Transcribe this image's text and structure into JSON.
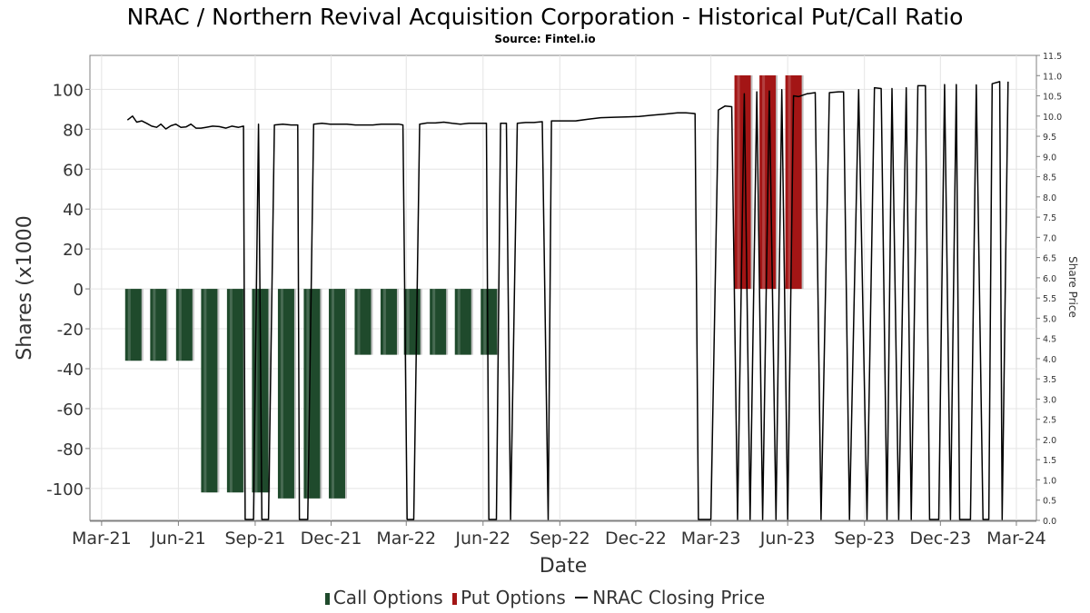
{
  "chart_data": {
    "type": "bar",
    "title": "NRAC / Northern Revival Acquisition Corporation - Historical Put/Call Ratio",
    "subtitle": "Source: Fintel.io",
    "xlabel": "Date",
    "ylabel": "Shares (x1000",
    "y2label": "Share Price",
    "x_tick_labels": [
      "Mar-21",
      "Jun-21",
      "Sep-21",
      "Dec-21",
      "Mar-22",
      "Jun-22",
      "Sep-22",
      "Dec-22",
      "Mar-23",
      "Jun-23",
      "Sep-23",
      "Dec-23",
      "Mar-24"
    ],
    "x_tick_dates": [
      "2021-03-01",
      "2021-06-01",
      "2021-09-01",
      "2021-12-01",
      "2022-03-01",
      "2022-06-01",
      "2022-09-01",
      "2022-12-01",
      "2023-03-01",
      "2023-06-01",
      "2023-09-01",
      "2023-12-01",
      "2024-03-01"
    ],
    "x_range": [
      "2021-02-15",
      "2024-03-25"
    ],
    "ylim": [
      -116,
      117
    ],
    "y_ticks": [
      100,
      80,
      60,
      40,
      20,
      0,
      -20,
      -40,
      -60,
      -80,
      -100
    ],
    "y2lim": [
      0,
      11.5
    ],
    "y2_ticks": [
      "0.0",
      "0.5",
      "1.0",
      "1.5",
      "2.0",
      "2.5",
      "3.0",
      "3.5",
      "4.0",
      "4.5",
      "5.0",
      "5.5",
      "6.0",
      "6.5",
      "7.0",
      "7.5",
      "8.0",
      "8.5",
      "9.0",
      "9.5",
      "10.0",
      "10.5",
      "11.0",
      "11.5"
    ],
    "grid": true,
    "legend_position": "bottom",
    "series": [
      {
        "name": "Call Options",
        "color": "#1f4a2c",
        "points": [
          {
            "date": "2021-04-08",
            "value": -36
          },
          {
            "date": "2021-05-08",
            "value": -36
          },
          {
            "date": "2021-06-08",
            "value": -36
          },
          {
            "date": "2021-07-08",
            "value": -102
          },
          {
            "date": "2021-08-08",
            "value": -102
          },
          {
            "date": "2021-09-07",
            "value": -102
          },
          {
            "date": "2021-10-08",
            "value": -105
          },
          {
            "date": "2021-11-08",
            "value": -105
          },
          {
            "date": "2021-12-08",
            "value": -105
          },
          {
            "date": "2022-01-08",
            "value": -33
          },
          {
            "date": "2022-02-08",
            "value": -33
          },
          {
            "date": "2022-03-08",
            "value": -33
          },
          {
            "date": "2022-04-08",
            "value": -33
          },
          {
            "date": "2022-05-08",
            "value": -33
          },
          {
            "date": "2022-06-08",
            "value": -33
          }
        ]
      },
      {
        "name": "Put Options",
        "color": "#a31515",
        "points": [
          {
            "date": "2023-04-08",
            "value": 107
          },
          {
            "date": "2023-05-08",
            "value": 107
          },
          {
            "date": "2023-06-08",
            "value": 107
          }
        ]
      },
      {
        "name": "NRAC Closing Price",
        "color": "#000000",
        "axis": "right",
        "points": [
          [
            "2021-04-01",
            9.9
          ],
          [
            "2021-04-07",
            10.0
          ],
          [
            "2021-04-12",
            9.85
          ],
          [
            "2021-04-18",
            9.88
          ],
          [
            "2021-04-24",
            9.82
          ],
          [
            "2021-04-30",
            9.75
          ],
          [
            "2021-05-06",
            9.72
          ],
          [
            "2021-05-11",
            9.8
          ],
          [
            "2021-05-17",
            9.68
          ],
          [
            "2021-05-23",
            9.76
          ],
          [
            "2021-05-29",
            9.8
          ],
          [
            "2021-06-04",
            9.72
          ],
          [
            "2021-06-10",
            9.73
          ],
          [
            "2021-06-16",
            9.8
          ],
          [
            "2021-06-22",
            9.7
          ],
          [
            "2021-06-28",
            9.7
          ],
          [
            "2021-07-04",
            9.72
          ],
          [
            "2021-07-12",
            9.75
          ],
          [
            "2021-07-20",
            9.74
          ],
          [
            "2021-07-28",
            9.7
          ],
          [
            "2021-08-04",
            9.75
          ],
          [
            "2021-08-12",
            9.72
          ],
          [
            "2021-08-18",
            9.75
          ],
          [
            "2021-08-20",
            0
          ],
          [
            "2021-08-30",
            0
          ],
          [
            "2021-09-05",
            9.8
          ],
          [
            "2021-09-09",
            0
          ],
          [
            "2021-09-17",
            0
          ],
          [
            "2021-09-24",
            9.78
          ],
          [
            "2021-10-04",
            9.8
          ],
          [
            "2021-10-14",
            9.78
          ],
          [
            "2021-10-22",
            9.78
          ],
          [
            "2021-10-24",
            0
          ],
          [
            "2021-11-03",
            0
          ],
          [
            "2021-11-10",
            9.8
          ],
          [
            "2021-11-20",
            9.82
          ],
          [
            "2021-11-30",
            9.8
          ],
          [
            "2021-12-10",
            9.8
          ],
          [
            "2021-12-20",
            9.8
          ],
          [
            "2021-12-30",
            9.78
          ],
          [
            "2022-01-10",
            9.78
          ],
          [
            "2022-01-20",
            9.78
          ],
          [
            "2022-01-30",
            9.8
          ],
          [
            "2022-02-10",
            9.8
          ],
          [
            "2022-02-20",
            9.8
          ],
          [
            "2022-02-25",
            9.78
          ],
          [
            "2022-03-02",
            0
          ],
          [
            "2022-03-10",
            0
          ],
          [
            "2022-03-17",
            9.8
          ],
          [
            "2022-03-26",
            9.83
          ],
          [
            "2022-04-05",
            9.83
          ],
          [
            "2022-04-15",
            9.85
          ],
          [
            "2022-04-25",
            9.82
          ],
          [
            "2022-05-05",
            9.8
          ],
          [
            "2022-05-15",
            9.82
          ],
          [
            "2022-05-25",
            9.82
          ],
          [
            "2022-06-05",
            9.82
          ],
          [
            "2022-06-08",
            0
          ],
          [
            "2022-06-17",
            0
          ],
          [
            "2022-06-22",
            9.82
          ],
          [
            "2022-06-29",
            9.82
          ],
          [
            "2022-07-04",
            0
          ],
          [
            "2022-07-12",
            9.82
          ],
          [
            "2022-07-22",
            9.84
          ],
          [
            "2022-08-01",
            9.84
          ],
          [
            "2022-08-11",
            9.86
          ],
          [
            "2022-08-18",
            0
          ],
          [
            "2022-08-22",
            9.88
          ],
          [
            "2022-09-05",
            9.88
          ],
          [
            "2022-09-20",
            9.88
          ],
          [
            "2022-10-05",
            9.92
          ],
          [
            "2022-10-20",
            9.96
          ],
          [
            "2022-11-05",
            9.97
          ],
          [
            "2022-11-20",
            9.98
          ],
          [
            "2022-12-05",
            9.99
          ],
          [
            "2022-12-20",
            10.02
          ],
          [
            "2023-01-05",
            10.05
          ],
          [
            "2023-01-20",
            10.08
          ],
          [
            "2023-01-30",
            10.08
          ],
          [
            "2023-02-10",
            10.06
          ],
          [
            "2023-02-14",
            0
          ],
          [
            "2023-03-01",
            0
          ],
          [
            "2023-03-10",
            10.15
          ],
          [
            "2023-03-18",
            10.25
          ],
          [
            "2023-03-26",
            10.23
          ],
          [
            "2023-04-02",
            0
          ],
          [
            "2023-04-10",
            10.55
          ],
          [
            "2023-04-17",
            0
          ],
          [
            "2023-04-25",
            10.6
          ],
          [
            "2023-05-02",
            0
          ],
          [
            "2023-05-10",
            10.62
          ],
          [
            "2023-05-18",
            0
          ],
          [
            "2023-05-25",
            10.65
          ],
          [
            "2023-06-01",
            0
          ],
          [
            "2023-06-08",
            10.5
          ],
          [
            "2023-06-14",
            10.48
          ],
          [
            "2023-06-24",
            10.55
          ],
          [
            "2023-07-04",
            10.58
          ],
          [
            "2023-07-11",
            0
          ],
          [
            "2023-07-21",
            10.58
          ],
          [
            "2023-08-01",
            10.6
          ],
          [
            "2023-08-07",
            10.6
          ],
          [
            "2023-08-14",
            0
          ],
          [
            "2023-08-25",
            10.65
          ],
          [
            "2023-09-04",
            0
          ],
          [
            "2023-09-13",
            10.7
          ],
          [
            "2023-09-21",
            10.68
          ],
          [
            "2023-09-28",
            0
          ],
          [
            "2023-10-04",
            10.68
          ],
          [
            "2023-10-12",
            0
          ],
          [
            "2023-10-21",
            10.7
          ],
          [
            "2023-10-27",
            0
          ],
          [
            "2023-11-04",
            10.75
          ],
          [
            "2023-11-13",
            10.75
          ],
          [
            "2023-11-18",
            0
          ],
          [
            "2023-11-29",
            0
          ],
          [
            "2023-12-06",
            10.78
          ],
          [
            "2023-12-13",
            0
          ],
          [
            "2023-12-20",
            10.78
          ],
          [
            "2023-12-24",
            0
          ],
          [
            "2024-01-06",
            0
          ],
          [
            "2024-01-13",
            10.77
          ],
          [
            "2024-01-21",
            0
          ],
          [
            "2024-01-28",
            0
          ],
          [
            "2024-02-01",
            10.8
          ],
          [
            "2024-02-10",
            10.85
          ],
          [
            "2024-02-13",
            0
          ],
          [
            "2024-02-20",
            10.85
          ]
        ]
      }
    ]
  }
}
